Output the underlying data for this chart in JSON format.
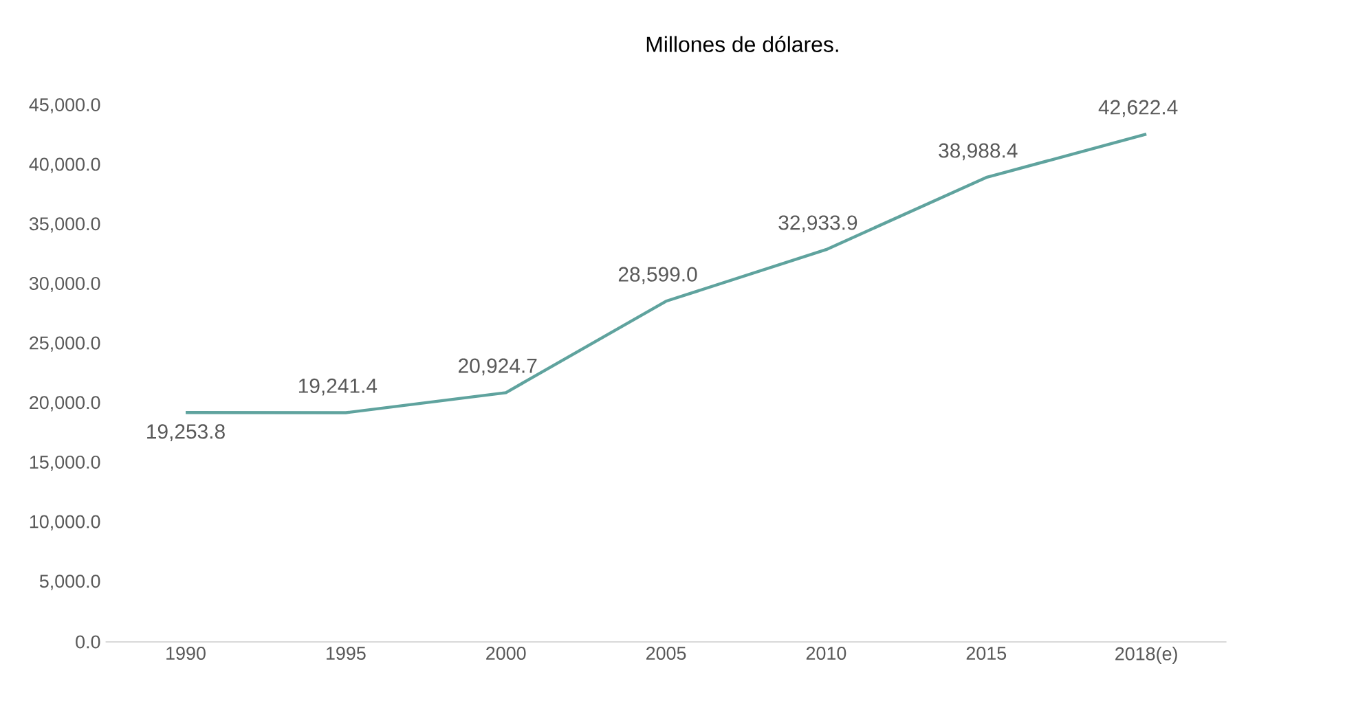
{
  "chart_data": {
    "type": "line",
    "title": "Millones de dólares.",
    "categories": [
      "1990",
      "1995",
      "2000",
      "2005",
      "2010",
      "2015",
      "2018(e)"
    ],
    "values": [
      19253.8,
      19241.4,
      20924.7,
      28599.0,
      32933.9,
      38988.4,
      42622.4
    ],
    "value_labels": [
      "19,253.8",
      "19,241.4",
      "20,924.7",
      "28,599.0",
      "32,933.9",
      "38,988.4",
      "42,622.4"
    ],
    "color": "#5fa39e",
    "ylim": [
      0,
      45000
    ],
    "yticks": [
      {
        "value": 0,
        "label": "0.0"
      },
      {
        "value": 5000,
        "label": "5,000.0"
      },
      {
        "value": 10000,
        "label": "10,000.0"
      },
      {
        "value": 15000,
        "label": "15,000.0"
      },
      {
        "value": 20000,
        "label": "20,000.0"
      },
      {
        "value": 25000,
        "label": "25,000.0"
      },
      {
        "value": 30000,
        "label": "30,000.0"
      },
      {
        "value": 35000,
        "label": "35,000.0"
      },
      {
        "value": 40000,
        "label": "40,000.0"
      },
      {
        "value": 45000,
        "label": "45,000.0"
      }
    ]
  }
}
